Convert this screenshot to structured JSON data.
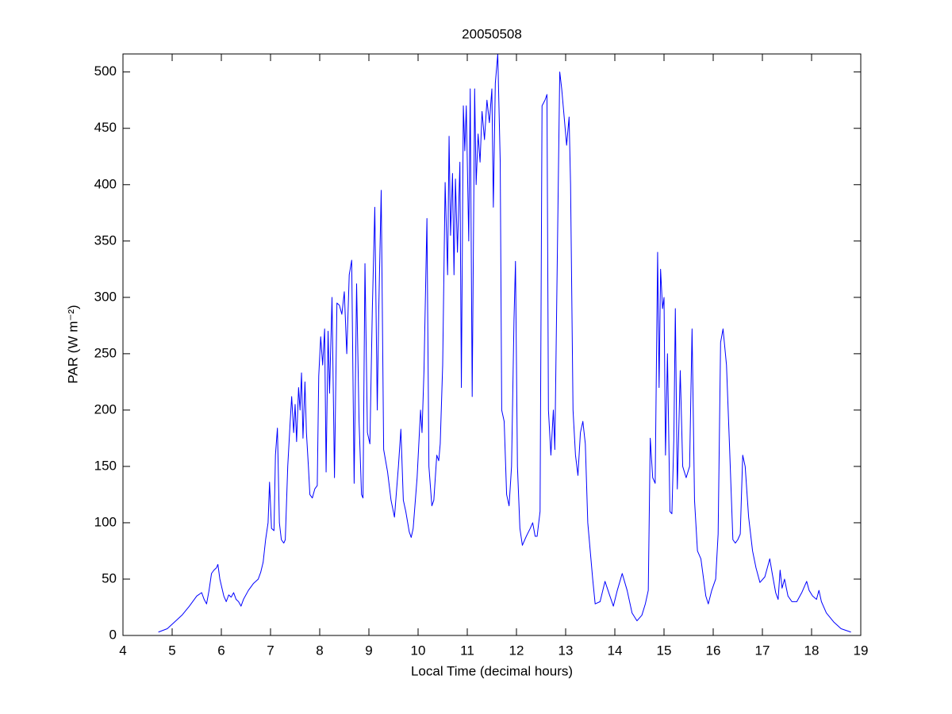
{
  "chart_data": {
    "type": "line",
    "title": "20050508",
    "xlabel": "Local Time (decimal hours)",
    "ylabel": "PAR (W m⁻²)",
    "color": "#0000ff",
    "xlim": [
      4,
      19
    ],
    "xticks": [
      4,
      5,
      6,
      7,
      8,
      9,
      10,
      11,
      12,
      13,
      14,
      15,
      16,
      17,
      18,
      19
    ],
    "ylim": [
      0,
      516
    ],
    "yticks": [
      0,
      50,
      100,
      150,
      200,
      250,
      300,
      350,
      400,
      450,
      500
    ],
    "grid": false,
    "x": [
      4.72,
      4.9,
      5.05,
      5.2,
      5.35,
      5.5,
      5.6,
      5.65,
      5.7,
      5.75,
      5.8,
      5.85,
      5.9,
      5.93,
      5.97,
      6.05,
      6.1,
      6.15,
      6.2,
      6.25,
      6.3,
      6.35,
      6.4,
      6.45,
      6.55,
      6.65,
      6.75,
      6.8,
      6.85,
      6.9,
      6.95,
      6.98,
      7.02,
      7.07,
      7.1,
      7.14,
      7.18,
      7.22,
      7.27,
      7.3,
      7.35,
      7.4,
      7.43,
      7.47,
      7.5,
      7.53,
      7.57,
      7.6,
      7.63,
      7.66,
      7.7,
      7.73,
      7.77,
      7.8,
      7.85,
      7.9,
      7.95,
      7.98,
      8.02,
      8.06,
      8.1,
      8.13,
      8.17,
      8.2,
      8.25,
      8.3,
      8.35,
      8.4,
      8.45,
      8.5,
      8.55,
      8.6,
      8.65,
      8.7,
      8.75,
      8.8,
      8.85,
      8.88,
      8.92,
      8.97,
      9.02,
      9.07,
      9.12,
      9.17,
      9.2,
      9.25,
      9.3,
      9.38,
      9.45,
      9.52,
      9.6,
      9.65,
      9.7,
      9.75,
      9.82,
      9.86,
      9.9,
      9.98,
      10.05,
      10.08,
      10.12,
      10.18,
      10.22,
      10.28,
      10.32,
      10.38,
      10.42,
      10.45,
      10.5,
      10.55,
      10.6,
      10.63,
      10.66,
      10.7,
      10.73,
      10.76,
      10.8,
      10.85,
      10.88,
      10.92,
      10.95,
      10.98,
      11.03,
      11.06,
      11.1,
      11.15,
      11.18,
      11.22,
      11.26,
      11.3,
      11.35,
      11.4,
      11.45,
      11.5,
      11.53,
      11.57,
      11.62,
      11.67,
      11.7,
      11.75,
      11.8,
      11.85,
      11.9,
      11.95,
      11.98,
      12.02,
      12.07,
      12.12,
      12.2,
      12.28,
      12.33,
      12.38,
      12.42,
      12.48,
      12.52,
      12.58,
      12.62,
      12.65,
      12.7,
      12.75,
      12.78,
      12.82,
      12.88,
      12.92,
      12.97,
      13.02,
      13.07,
      13.1,
      13.15,
      13.2,
      13.25,
      13.3,
      13.35,
      13.4,
      13.45,
      13.55,
      13.6,
      13.7,
      13.8,
      13.9,
      13.97,
      14.05,
      14.15,
      14.25,
      14.35,
      14.45,
      14.55,
      14.62,
      14.68,
      14.72,
      14.77,
      14.82,
      14.87,
      14.9,
      14.93,
      14.97,
      15.0,
      15.03,
      15.07,
      15.12,
      15.16,
      15.2,
      15.23,
      15.27,
      15.33,
      15.38,
      15.45,
      15.52,
      15.57,
      15.62,
      15.68,
      15.75,
      15.85,
      15.9,
      15.97,
      16.05,
      16.1,
      16.15,
      16.2,
      16.27,
      16.33,
      16.4,
      16.45,
      16.5,
      16.55,
      16.6,
      16.65,
      16.72,
      16.8,
      16.87,
      16.95,
      17.05,
      17.15,
      17.2,
      17.27,
      17.32,
      17.36,
      17.4,
      17.45,
      17.52,
      17.6,
      17.7,
      17.8,
      17.9,
      17.95,
      18.02,
      18.1,
      18.15,
      18.2,
      18.3,
      18.45,
      18.6,
      18.8
    ],
    "values": [
      3,
      6,
      12,
      18,
      26,
      35,
      38,
      32,
      28,
      40,
      55,
      58,
      60,
      63,
      50,
      35,
      30,
      36,
      34,
      38,
      32,
      30,
      26,
      32,
      40,
      46,
      50,
      56,
      65,
      85,
      100,
      136,
      95,
      93,
      160,
      184,
      100,
      85,
      82,
      85,
      150,
      190,
      212,
      180,
      205,
      172,
      220,
      200,
      233,
      175,
      225,
      180,
      150,
      125,
      122,
      130,
      133,
      230,
      265,
      240,
      272,
      145,
      270,
      215,
      300,
      140,
      295,
      293,
      285,
      305,
      250,
      320,
      333,
      135,
      312,
      190,
      125,
      122,
      330,
      180,
      170,
      290,
      380,
      200,
      288,
      395,
      165,
      145,
      120,
      105,
      150,
      183,
      120,
      110,
      92,
      87,
      95,
      140,
      200,
      180,
      235,
      370,
      150,
      115,
      120,
      160,
      155,
      170,
      240,
      402,
      320,
      443,
      355,
      410,
      320,
      405,
      340,
      420,
      220,
      470,
      430,
      470,
      350,
      485,
      212,
      485,
      400,
      445,
      420,
      465,
      440,
      475,
      455,
      485,
      380,
      490,
      516,
      420,
      200,
      190,
      125,
      115,
      150,
      280,
      332,
      150,
      95,
      80,
      88,
      95,
      100,
      88,
      88,
      110,
      470,
      475,
      480,
      200,
      160,
      200,
      165,
      300,
      500,
      485,
      460,
      435,
      460,
      400,
      200,
      160,
      142,
      180,
      190,
      170,
      100,
      50,
      28,
      30,
      48,
      35,
      26,
      40,
      55,
      40,
      20,
      13,
      18,
      28,
      40,
      175,
      140,
      135,
      340,
      220,
      325,
      290,
      300,
      160,
      250,
      110,
      108,
      175,
      290,
      130,
      235,
      150,
      140,
      150,
      272,
      120,
      75,
      68,
      35,
      28,
      40,
      50,
      90,
      260,
      272,
      240,
      170,
      85,
      82,
      85,
      90,
      160,
      150,
      105,
      75,
      60,
      47,
      52,
      68,
      55,
      38,
      32,
      58,
      42,
      50,
      35,
      30,
      30,
      38,
      48,
      40,
      35,
      32,
      40,
      30,
      20,
      12,
      6,
      3
    ]
  }
}
